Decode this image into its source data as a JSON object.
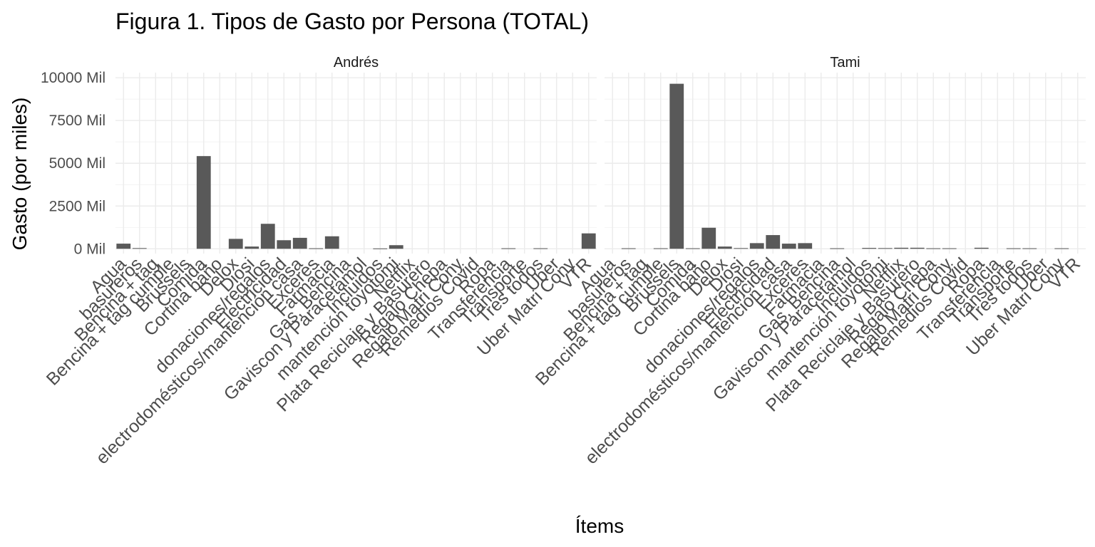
{
  "chart_data": {
    "type": "bar",
    "title": "Figura 1. Tipos de Gasto por Persona (TOTAL)",
    "xlabel": "Ítems",
    "ylabel": "Gasto (por miles)",
    "y_ticks": [
      0,
      2500,
      5000,
      7500,
      10000
    ],
    "y_tick_labels": [
      "0 Mil",
      "2500 Mil",
      "5000 Mil",
      "7500 Mil",
      "10000 Mil"
    ],
    "ylim": [
      -280,
      10300
    ],
    "grid": true,
    "bar_color": "#595959",
    "categories": [
      "Agua",
      "basureros",
      "Bencina + tag",
      "Bencina + tag cumple",
      "Brussels",
      "Comida",
      "Cortina baño",
      "Delox",
      "Diosi",
      "donaciones/regalos",
      "Electricidad",
      "electrodomésticos/mantención casa",
      "Exceres",
      "Farmacia",
      "Gas, Bencina",
      "Gaviscon y Paracetamol",
      "Incluidos",
      "mantención toyotomi",
      "Netflix",
      "Plata Reciclaje y Basurero",
      "Regalo Chepa",
      "Regalo Matri Cony",
      "Remedios Covid",
      "Ropa",
      "Transferencia",
      "Transporte",
      "Tres todos",
      "Uber",
      "Uber Matri Cony",
      "VTR"
    ],
    "series": [
      {
        "name": "Andrés",
        "values": [
          300,
          40,
          0,
          0,
          0,
          5420,
          0,
          580,
          130,
          1460,
          500,
          640,
          30,
          730,
          0,
          0,
          20,
          210,
          0,
          0,
          0,
          0,
          0,
          0,
          30,
          0,
          30,
          0,
          0,
          900
        ]
      },
      {
        "name": "Tami",
        "values": [
          0,
          30,
          0,
          30,
          9650,
          30,
          1230,
          130,
          40,
          330,
          800,
          300,
          330,
          0,
          30,
          0,
          50,
          40,
          60,
          60,
          30,
          30,
          0,
          60,
          0,
          30,
          30,
          0,
          30,
          0
        ]
      }
    ]
  }
}
